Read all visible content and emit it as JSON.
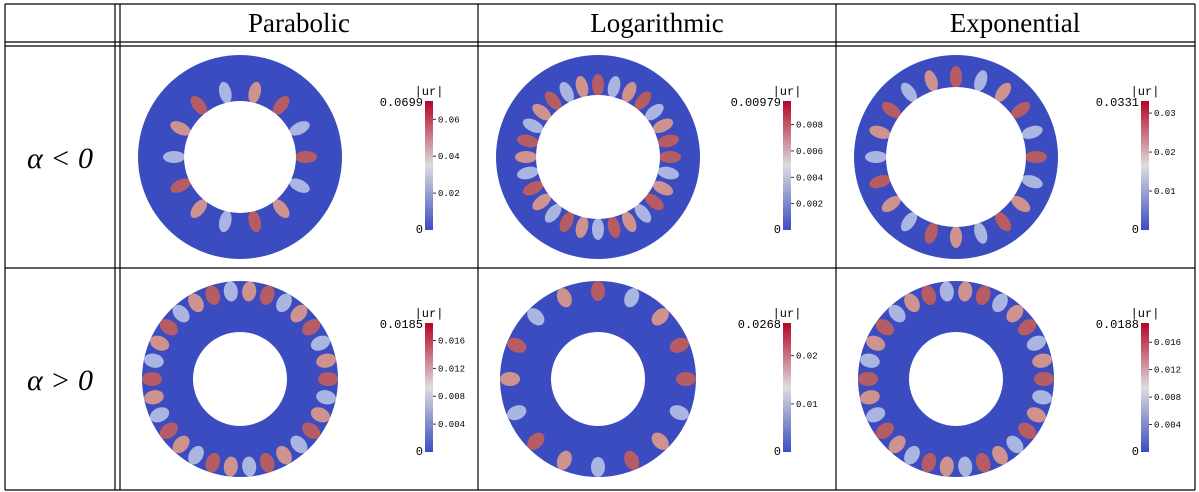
{
  "table": {
    "columns": [
      "Parabolic",
      "Logarithmic",
      "Exponential"
    ],
    "rows": [
      {
        "label": "α < 0",
        "cells": [
          {
            "title": "|ur|",
            "max": "0.0699",
            "ticks": [
              "0.06",
              "0.04",
              "0.02"
            ],
            "zero": "0"
          },
          {
            "title": "|ur|",
            "max": "0.00979",
            "ticks": [
              "0.008",
              "0.006",
              "0.004",
              "0.002"
            ],
            "zero": "0"
          },
          {
            "title": "|ur|",
            "max": "0.0331",
            "ticks": [
              "0.03",
              "0.02",
              "0.01"
            ],
            "zero": "0"
          }
        ]
      },
      {
        "label": "α > 0",
        "cells": [
          {
            "title": "|ur|",
            "max": "0.0185",
            "ticks": [
              "0.016",
              "0.012",
              "0.008",
              "0.004"
            ],
            "zero": "0"
          },
          {
            "title": "|ur|",
            "max": "0.0268",
            "ticks": [
              "0.02",
              "0.01"
            ],
            "zero": "0"
          },
          {
            "title": "|ur|",
            "max": "0.0188",
            "ticks": [
              "0.016",
              "0.012",
              "0.008",
              "0.004"
            ],
            "zero": "0"
          }
        ]
      }
    ]
  }
}
